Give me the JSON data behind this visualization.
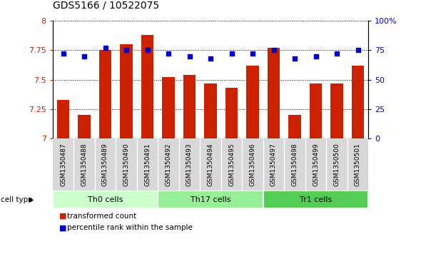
{
  "title": "GDS5166 / 10522075",
  "samples": [
    "GSM1350487",
    "GSM1350488",
    "GSM1350489",
    "GSM1350490",
    "GSM1350491",
    "GSM1350492",
    "GSM1350493",
    "GSM1350494",
    "GSM1350495",
    "GSM1350496",
    "GSM1350497",
    "GSM1350498",
    "GSM1350499",
    "GSM1350500",
    "GSM1350501"
  ],
  "bar_values": [
    7.33,
    7.2,
    7.75,
    7.8,
    7.88,
    7.52,
    7.54,
    7.47,
    7.43,
    7.62,
    7.77,
    7.2,
    7.47,
    7.47,
    7.62
  ],
  "dot_values": [
    72,
    70,
    77,
    75,
    75,
    72,
    70,
    68,
    72,
    72,
    75,
    68,
    70,
    72,
    75
  ],
  "bar_color": "#cc2200",
  "dot_color": "#0000cc",
  "ylim_left": [
    7.0,
    8.0
  ],
  "ylim_right": [
    0,
    100
  ],
  "yticks_left": [
    7.0,
    7.25,
    7.5,
    7.75,
    8.0
  ],
  "yticks_right": [
    0,
    25,
    50,
    75,
    100
  ],
  "ytick_labels_left": [
    "7",
    "7.25",
    "7.5",
    "7.75",
    "8"
  ],
  "ytick_labels_right": [
    "0",
    "25",
    "50",
    "75",
    "100%"
  ],
  "cell_groups": [
    {
      "label": "Th0 cells",
      "start": 0,
      "end": 4,
      "color": "#ccffcc"
    },
    {
      "label": "Th17 cells",
      "start": 5,
      "end": 9,
      "color": "#99ee99"
    },
    {
      "label": "Tr1 cells",
      "start": 10,
      "end": 14,
      "color": "#55cc55"
    }
  ],
  "cell_type_label": "cell type",
  "legend_bar_label": "transformed count",
  "legend_dot_label": "percentile rank within the sample",
  "label_bg_color": "#d8d8d8",
  "plot_bg_color": "#ffffff",
  "bar_width": 0.6,
  "title_fontsize": 10,
  "axis_fontsize": 8,
  "label_fontsize": 6.5,
  "group_fontsize": 8,
  "legend_fontsize": 7.5
}
